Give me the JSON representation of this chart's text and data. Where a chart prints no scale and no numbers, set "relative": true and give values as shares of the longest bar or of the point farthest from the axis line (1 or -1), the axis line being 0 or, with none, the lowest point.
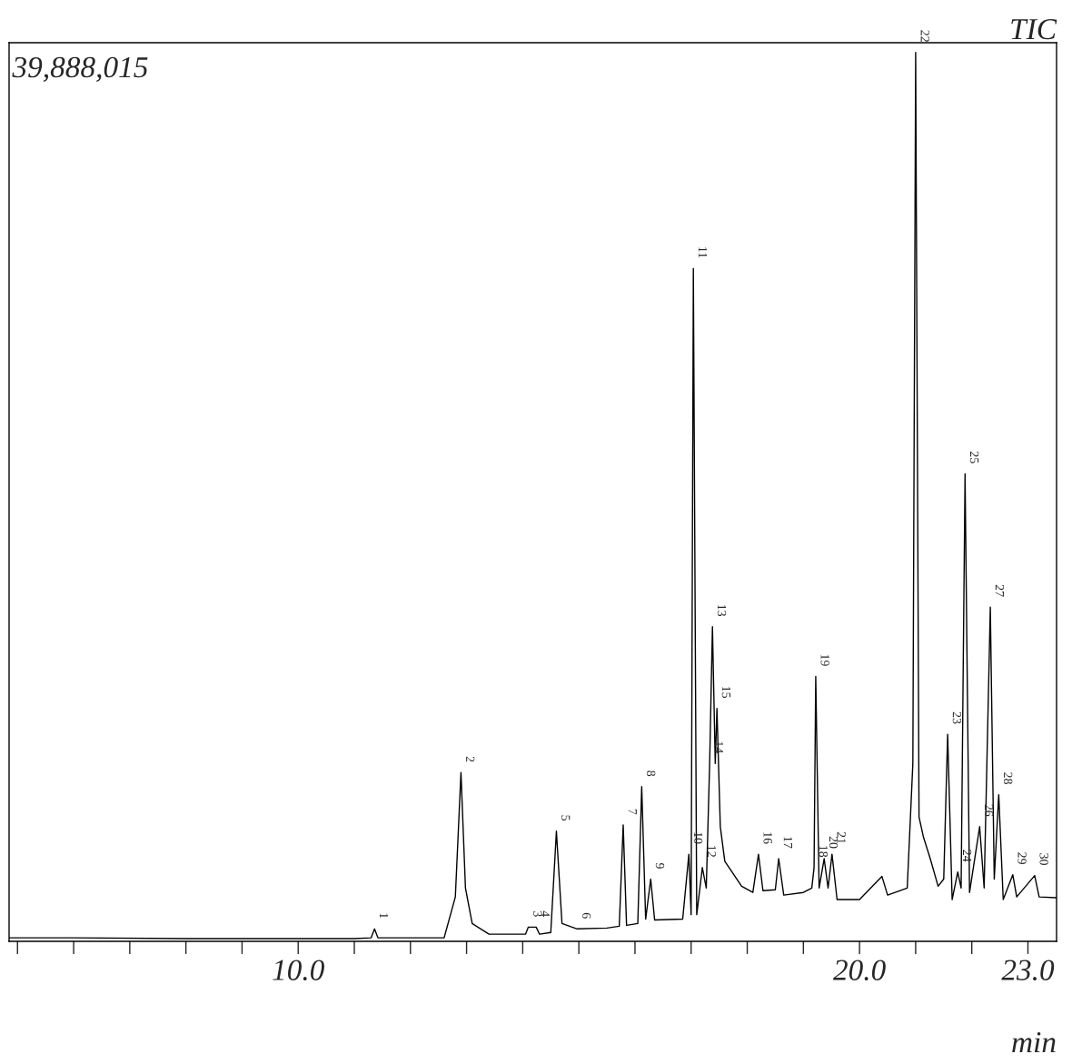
{
  "chart_data": {
    "type": "line",
    "relative": true,
    "title": "TIC",
    "xlabel": "min",
    "color": "#000000",
    "xlim": [
      4.85,
      23.51
    ],
    "xticks": [
      {
        "value": 5,
        "label": null
      },
      {
        "value": 6,
        "label": null
      },
      {
        "value": 7,
        "label": null
      },
      {
        "value": 8,
        "label": null
      },
      {
        "value": 9,
        "label": null
      },
      {
        "value": 10,
        "label": "10.0"
      },
      {
        "value": 11,
        "label": null
      },
      {
        "value": 12,
        "label": null
      },
      {
        "value": 13,
        "label": null
      },
      {
        "value": 14,
        "label": null
      },
      {
        "value": 15,
        "label": null
      },
      {
        "value": 16,
        "label": null
      },
      {
        "value": 17,
        "label": null
      },
      {
        "value": 18,
        "label": null
      },
      {
        "value": 19,
        "label": null
      },
      {
        "value": 20,
        "label": "20.0"
      },
      {
        "value": 21,
        "label": null
      },
      {
        "value": 22,
        "label": null
      },
      {
        "value": 23,
        "label": "23.0"
      }
    ],
    "tick_labels": "x",
    "grid": false,
    "legend": false,
    "marker": "none",
    "line_style": "solid",
    "x": [
      4.85,
      6.0,
      8.0,
      10.0,
      11.0,
      11.3,
      11.36,
      11.42,
      12.6,
      12.8,
      12.9,
      12.98,
      13.1,
      13.4,
      14.05,
      14.1,
      14.24,
      14.3,
      14.5,
      14.6,
      14.7,
      14.97,
      15.5,
      15.72,
      15.79,
      15.85,
      16.05,
      16.12,
      16.19,
      16.28,
      16.35,
      16.85,
      16.96,
      17.0,
      17.04,
      17.1,
      17.2,
      17.27,
      17.33,
      17.38,
      17.43,
      17.46,
      17.52,
      17.6,
      17.9,
      18.1,
      18.2,
      18.28,
      18.5,
      18.56,
      18.65,
      19.0,
      19.15,
      19.19,
      19.22,
      19.28,
      19.37,
      19.44,
      19.51,
      19.6,
      20.0,
      20.4,
      20.5,
      20.85,
      20.95,
      21.0,
      21.06,
      21.14,
      21.26,
      21.4,
      21.5,
      21.57,
      21.65,
      21.75,
      21.81,
      21.88,
      21.96,
      22.14,
      22.22,
      22.33,
      22.4,
      22.48,
      22.56,
      22.73,
      22.8,
      23.12,
      23.2,
      23.51
    ],
    "values": [
      0.004,
      0.004,
      0.003,
      0.003,
      0.003,
      0.004,
      0.014,
      0.004,
      0.004,
      0.05,
      0.19,
      0.06,
      0.02,
      0.008,
      0.008,
      0.016,
      0.016,
      0.008,
      0.01,
      0.124,
      0.02,
      0.014,
      0.015,
      0.017,
      0.131,
      0.018,
      0.02,
      0.174,
      0.025,
      0.07,
      0.024,
      0.025,
      0.098,
      0.03,
      0.757,
      0.03,
      0.083,
      0.06,
      0.2,
      0.354,
      0.2,
      0.262,
      0.129,
      0.09,
      0.062,
      0.055,
      0.098,
      0.057,
      0.058,
      0.093,
      0.052,
      0.055,
      0.06,
      0.083,
      0.298,
      0.06,
      0.093,
      0.06,
      0.098,
      0.047,
      0.047,
      0.073,
      0.052,
      0.06,
      0.2,
      1.0,
      0.14,
      0.117,
      0.093,
      0.062,
      0.07,
      0.233,
      0.047,
      0.078,
      0.06,
      0.526,
      0.055,
      0.129,
      0.06,
      0.376,
      0.07,
      0.165,
      0.047,
      0.075,
      0.05,
      0.074,
      0.05,
      0.049
    ],
    "annotations": [
      "39,888,015",
      {
        "text": "1",
        "x": 11.36,
        "y": 0.014
      },
      {
        "text": "2",
        "x": 12.9,
        "y": 0.19
      },
      {
        "text": "3",
        "x": 14.1,
        "y": 0.016
      },
      {
        "text": "4",
        "x": 14.24,
        "y": 0.016
      },
      {
        "text": "5",
        "x": 14.6,
        "y": 0.124
      },
      {
        "text": "6",
        "x": 14.97,
        "y": 0.014
      },
      {
        "text": "7",
        "x": 15.79,
        "y": 0.131
      },
      {
        "text": "8",
        "x": 16.12,
        "y": 0.174
      },
      {
        "text": "9",
        "x": 16.28,
        "y": 0.07
      },
      {
        "text": "10",
        "x": 16.96,
        "y": 0.098
      },
      {
        "text": "11",
        "x": 17.04,
        "y": 0.757
      },
      {
        "text": "12",
        "x": 17.2,
        "y": 0.083
      },
      {
        "text": "13",
        "x": 17.38,
        "y": 0.354
      },
      {
        "text": "14",
        "x": 17.33,
        "y": 0.2
      },
      {
        "text": "15",
        "x": 17.46,
        "y": 0.262
      },
      {
        "text": "16",
        "x": 18.2,
        "y": 0.098
      },
      {
        "text": "17",
        "x": 18.56,
        "y": 0.093
      },
      {
        "text": "18",
        "x": 19.19,
        "y": 0.083
      },
      {
        "text": "19",
        "x": 19.22,
        "y": 0.298
      },
      {
        "text": "20",
        "x": 19.37,
        "y": 0.093
      },
      {
        "text": "21",
        "x": 19.51,
        "y": 0.098
      },
      {
        "text": "22",
        "x": 21.0,
        "y": 1.0
      },
      {
        "text": "23",
        "x": 21.57,
        "y": 0.233
      },
      {
        "text": "24",
        "x": 21.75,
        "y": 0.078
      },
      {
        "text": "25",
        "x": 21.88,
        "y": 0.526
      },
      {
        "text": "26",
        "x": 22.14,
        "y": 0.129
      },
      {
        "text": "27",
        "x": 22.33,
        "y": 0.376
      },
      {
        "text": "28",
        "x": 22.48,
        "y": 0.165
      },
      {
        "text": "29",
        "x": 22.73,
        "y": 0.075
      },
      {
        "text": "30",
        "x": 23.12,
        "y": 0.074
      }
    ]
  }
}
